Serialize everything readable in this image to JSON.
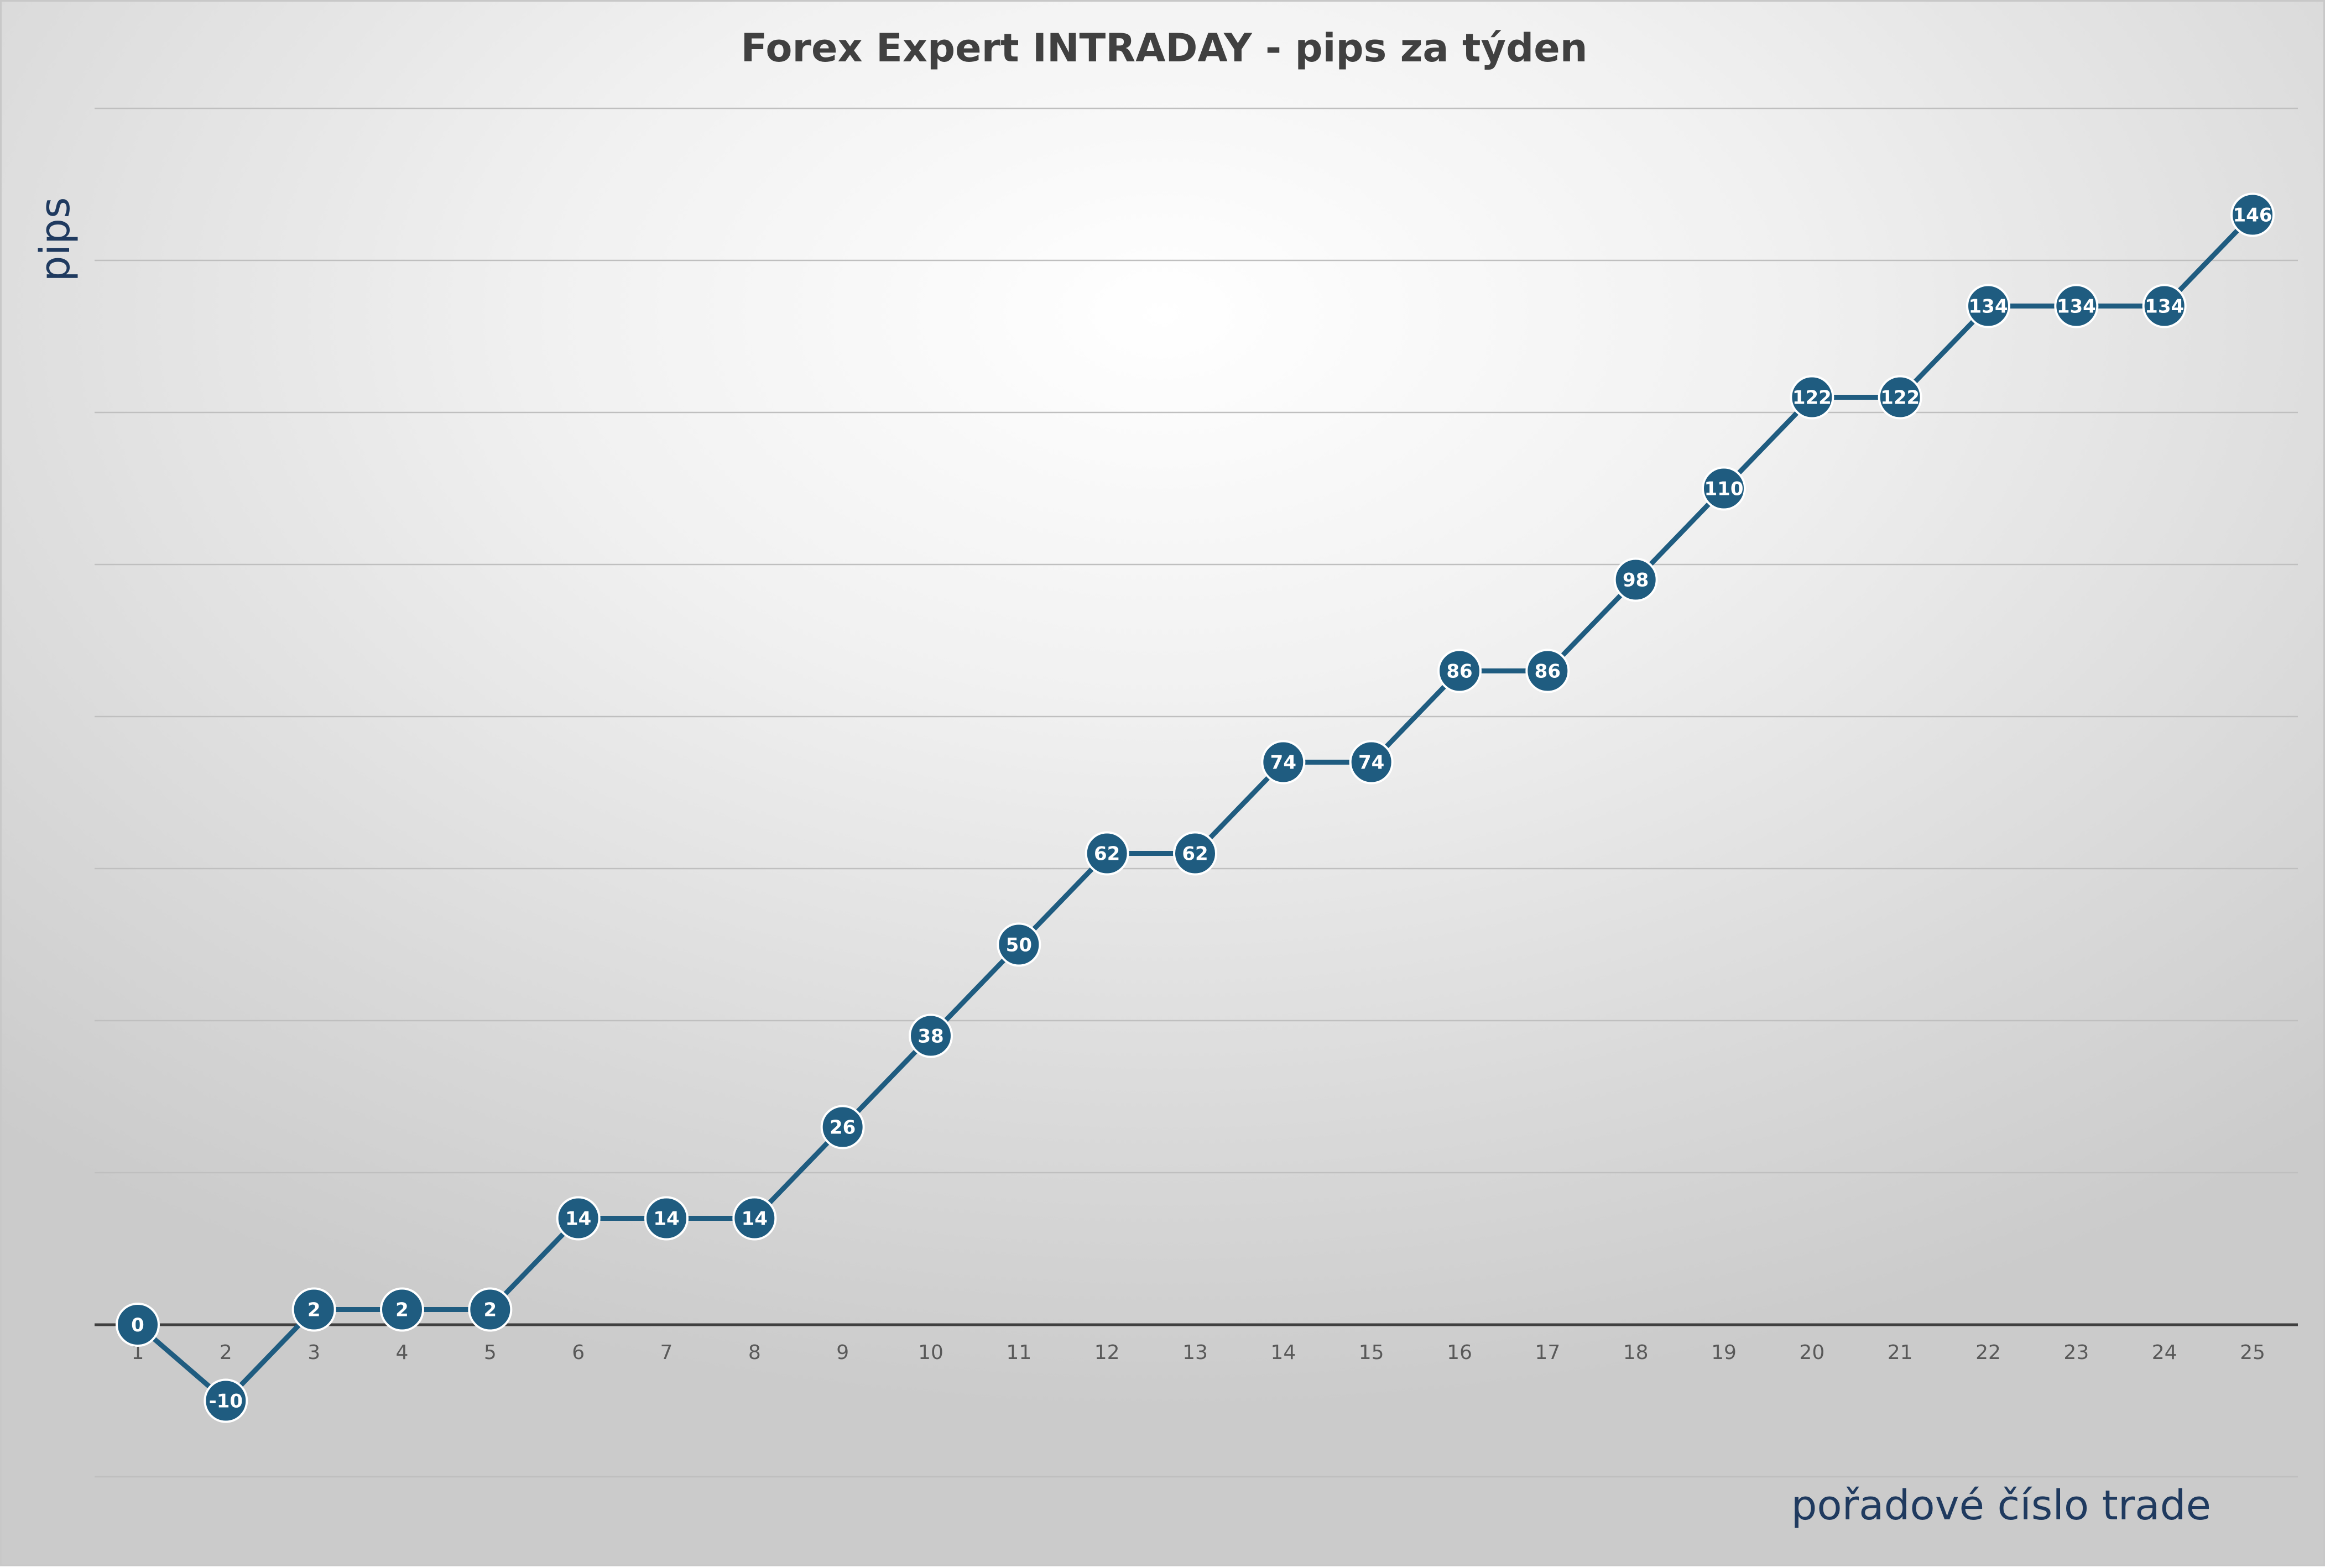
{
  "chart_data": {
    "type": "line",
    "title": "Forex Expert INTRADAY - pips za týden",
    "xlabel": "pořadové číslo trade",
    "ylabel": "pips",
    "x": [
      1,
      2,
      3,
      4,
      5,
      6,
      7,
      8,
      9,
      10,
      11,
      12,
      13,
      14,
      15,
      16,
      17,
      18,
      19,
      20,
      21,
      22,
      23,
      24,
      25
    ],
    "series": [
      {
        "values": [
          0,
          -10,
          2,
          2,
          2,
          14,
          14,
          14,
          26,
          38,
          50,
          62,
          62,
          74,
          74,
          86,
          86,
          98,
          110,
          122,
          122,
          134,
          134,
          134,
          146
        ]
      }
    ],
    "ylim": [
      -20,
      160
    ],
    "y_gridline_step": 20,
    "y_tick_labels_shown": false,
    "data_labels": true,
    "grid": true,
    "legend": "none",
    "colors": {
      "line": "#1f5c80",
      "marker": "#1f5c80",
      "gridline": "#bfbfbf",
      "zero_line": "#404040"
    }
  }
}
